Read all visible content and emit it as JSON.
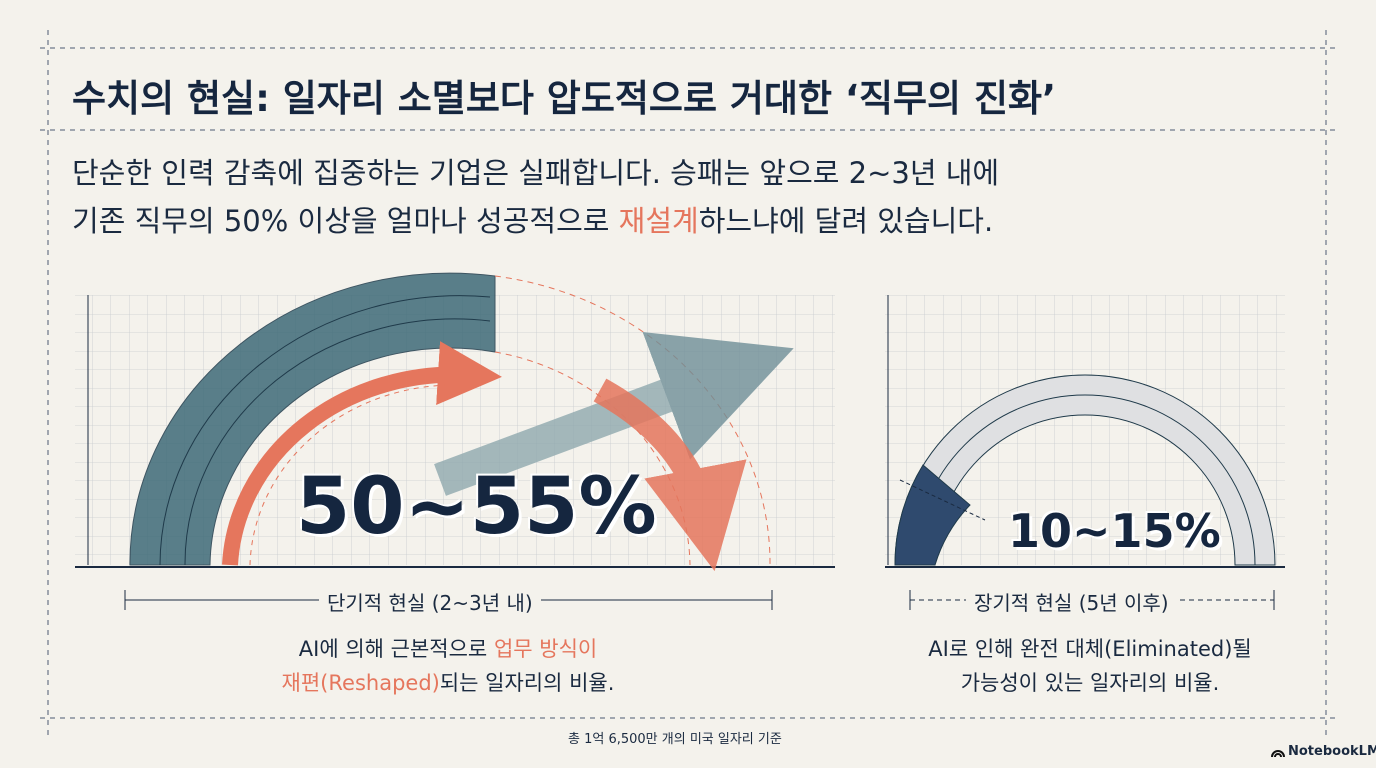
{
  "header": {
    "title": "수치의 현실: 일자리 소멸보다 압도적으로 거대한 ‘직무의 진화’",
    "lead": [
      "단순한 인력 감축에 집중하는 기업은 실패합니다. 승패는 앞으로 2~3년 내에",
      "기존 직무의 50% 이상을 얼마나 성공적으로 ",
      "재설계",
      "하느냐에 달려 있습니다."
    ]
  },
  "panels": [
    {
      "figure": "50~55%",
      "label": "단기적 현실 (2~3년 내)",
      "description": [
        "AI에 의해 근본적으로 ",
        "업무 방식이",
        "재편(Reshaped)",
        "되는 일자리의 비율."
      ]
    },
    {
      "figure": "10~15%",
      "label": "장기적 현실 (5년 이후)",
      "description": [
        "AI로 인해 완전 대체(Eliminated)될",
        "가능성이 있는 일자리의 비율."
      ]
    }
  ],
  "footer": {
    "note": "총 1억 6,500만 개의 미국 일자리 기준",
    "brand": "NotebookLM"
  }
}
